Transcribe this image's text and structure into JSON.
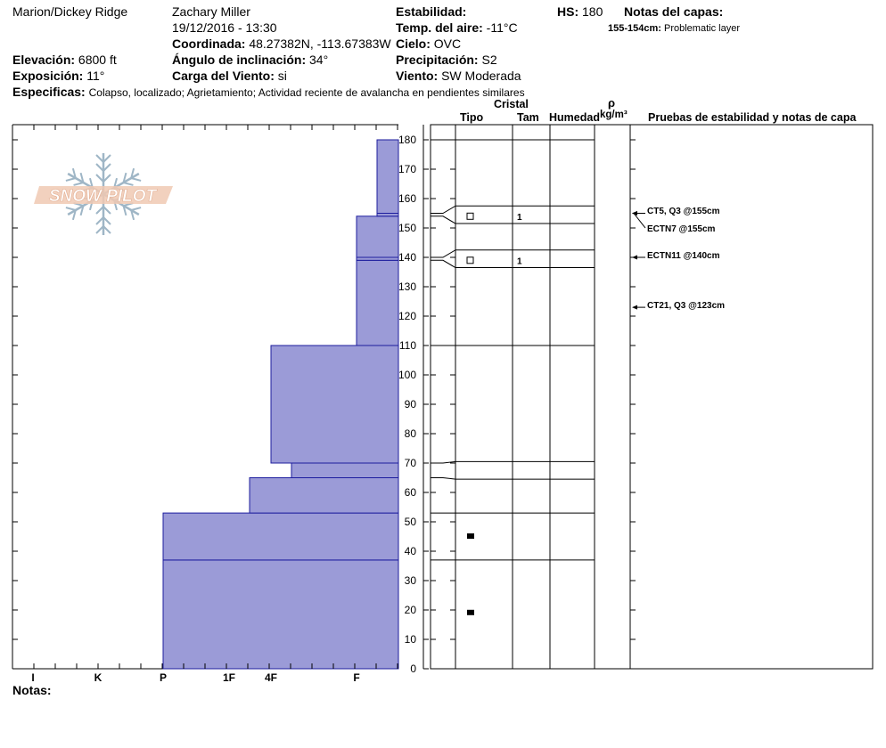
{
  "header": {
    "location": "Marion/Dickey Ridge",
    "observer": "Zachary Miller",
    "datetime": "19/12/2016 - 13:30",
    "coords_label": "Coordinada:",
    "coords_value": "48.27382N, -113.67383W",
    "elevation_label": "Elevación:",
    "elevation_value": "6800 ft",
    "exposure_label": "Exposición:",
    "exposure_value": "11°",
    "angle_label": "Ángulo de inclinación:",
    "angle_value": "34°",
    "wind_load_label": "Carga del Viento:",
    "wind_load_value": "si",
    "stability_label": "Estabilidad:",
    "air_temp_label": "Temp. del aire:",
    "air_temp_value": "-11°C",
    "sky_label": "Cielo:",
    "sky_value": "OVC",
    "precip_label": "Precipitación:",
    "precip_value": "S2",
    "wind_label": "Viento:",
    "wind_value": "SW Moderada",
    "hs_label": "HS:",
    "hs_value": "180",
    "layer_notes_label": "Notas del capas:",
    "layer_note_range": "155-154cm:",
    "layer_note_text": "Problematic layer",
    "specifics_label": "Especificas:",
    "specifics_value": "Colapso, localizado;  Agrietamiento;  Actividad reciente de avalancha en pendientes similares",
    "notes_label": "Notas:"
  },
  "logo": {
    "text": "SNOW PILOT"
  },
  "columns": {
    "crystal": "Cristal",
    "type": "Tipo",
    "size": "Tam",
    "moisture": "Humedad",
    "rho": "ρ",
    "density_unit": "kg/m³",
    "tests": "Pruebas de estabilidad y notas de capa"
  },
  "colors": {
    "hardness_fill": "#9b9bd7",
    "hardness_line": "#1c1c9e",
    "grid": "#000000"
  },
  "chart_data": {
    "type": "snow-profile",
    "y_axis": {
      "min": 0,
      "max": 180,
      "step": 10,
      "unit": "cm"
    },
    "hardness_scale": [
      "I",
      "K",
      "P",
      "1F",
      "4F",
      "F"
    ],
    "hardness_layers": [
      {
        "bottom": 0,
        "top": 37,
        "hardness": "P"
      },
      {
        "bottom": 37,
        "top": 53,
        "hardness": "P"
      },
      {
        "bottom": 53,
        "top": 65,
        "hardness": "1F+"
      },
      {
        "bottom": 65,
        "top": 70,
        "hardness": "4F+"
      },
      {
        "bottom": 70,
        "top": 110,
        "hardness": "4F"
      },
      {
        "bottom": 110,
        "top": 139,
        "hardness": "F+"
      },
      {
        "bottom": 139,
        "top": 140,
        "hardness": "F+"
      },
      {
        "bottom": 140,
        "top": 154,
        "hardness": "F+"
      },
      {
        "bottom": 154,
        "top": 155,
        "hardness": "F-"
      },
      {
        "bottom": 155,
        "top": 180,
        "hardness": "F-"
      }
    ],
    "layer_boundaries": [
      0,
      37,
      53,
      65,
      70,
      110,
      139,
      140,
      154,
      155,
      180
    ],
    "layer_rows": [
      {
        "center": 154,
        "grain": "open-square",
        "size": "1"
      },
      {
        "center": 139,
        "grain": "open-square",
        "size": "1"
      },
      {
        "center": 45,
        "grain": "filled-square",
        "size": ""
      },
      {
        "center": 19,
        "grain": "filled-square",
        "size": ""
      }
    ],
    "stability_tests": [
      {
        "text": "CT5, Q3 @155cm",
        "depth": 155
      },
      {
        "text": "ECTN7 @155cm",
        "depth": 155
      },
      {
        "text": "ECTN11 @140cm",
        "depth": 140
      },
      {
        "text": "CT21, Q3 @123cm",
        "depth": 123
      }
    ]
  }
}
